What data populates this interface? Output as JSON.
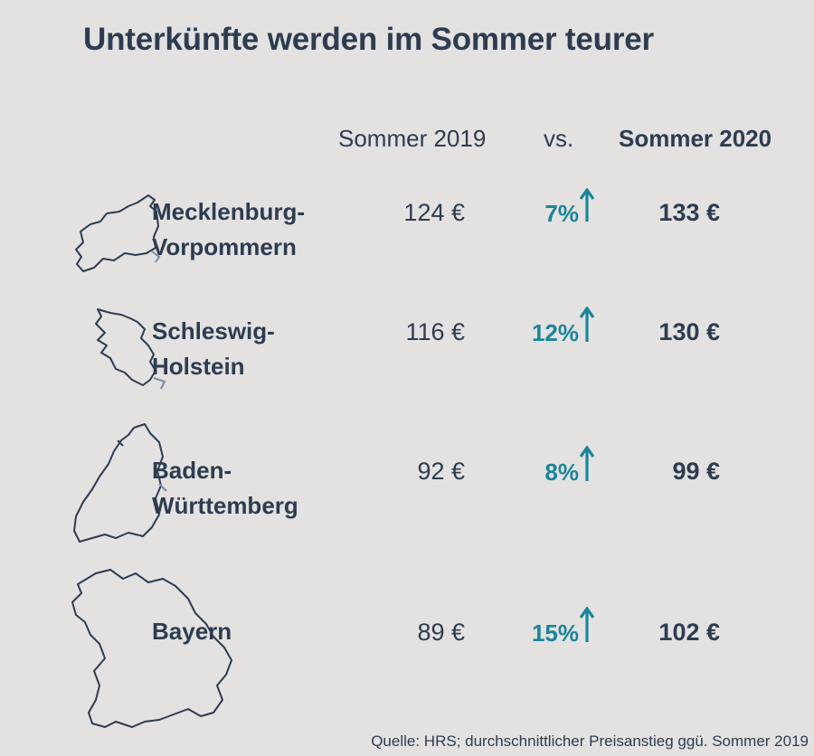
{
  "title": "Unterkünfte werden im Sommer teurer",
  "headers": {
    "col_2019": "Sommer 2019",
    "vs": "vs.",
    "col_2020": "Sommer 2020"
  },
  "chart_data": {
    "type": "table",
    "columns": [
      "Sommer 2019",
      "vs.",
      "Sommer 2020"
    ],
    "rows": [
      {
        "region_line1": "Mecklenburg-",
        "region_line2": "Vorpommern",
        "sommer_2019": "124 €",
        "increase": "7%",
        "sommer_2020": "133 €",
        "map_icon": "mecklenburg-vorpommern-outline-icon"
      },
      {
        "region_line1": "Schleswig-",
        "region_line2": "Holstein",
        "sommer_2019": "116 €",
        "increase": "12%",
        "sommer_2020": "130 €",
        "map_icon": "schleswig-holstein-outline-icon"
      },
      {
        "region_line1": "Baden-",
        "region_line2": "Württemberg",
        "sommer_2019": "92 €",
        "increase": "8%",
        "sommer_2020": "99 €",
        "map_icon": "baden-wuerttemberg-outline-icon"
      },
      {
        "region_line1": "Bayern",
        "region_line2": "",
        "sommer_2019": "89 €",
        "increase": "15%",
        "sommer_2020": "102 €",
        "map_icon": "bayern-outline-icon"
      }
    ],
    "increase_icon": "arrow-up-icon"
  },
  "colors": {
    "background": "#e3e2e1",
    "text": "#2d3c50",
    "accent": "#1a8599"
  },
  "source": "Quelle: HRS; durchschnittlicher Preisanstieg ggü. Sommer 2019"
}
